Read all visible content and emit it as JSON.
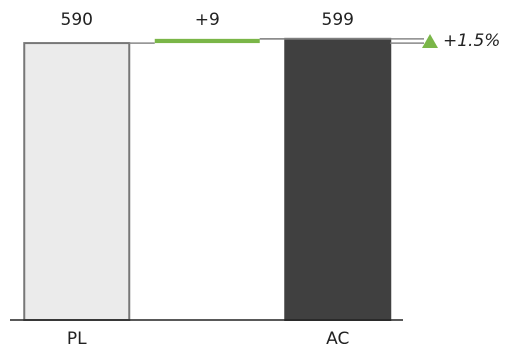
{
  "chart_data": {
    "type": "waterfall",
    "categories": [
      "PL",
      null,
      "AC"
    ],
    "values": [
      590,
      9,
      599
    ],
    "value_labels": [
      "590",
      "+9",
      "599"
    ],
    "kinds": [
      "total",
      "delta",
      "total"
    ],
    "colors": [
      "#ebebeb",
      "#7ab648",
      "#404040"
    ],
    "delta_percent": 1.5,
    "delta_percent_label": "+1.5%",
    "delta_color": "#7ab648",
    "ylim": [
      0,
      620
    ]
  }
}
